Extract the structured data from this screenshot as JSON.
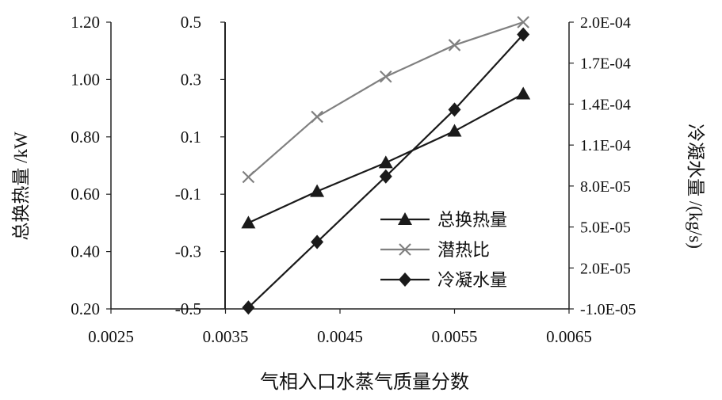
{
  "chart_data": {
    "type": "line",
    "xlabel": "气相入口水蒸气质量分数",
    "x_ticks": [
      "0.0025",
      "0.0035",
      "0.0045",
      "0.0055",
      "0.0065"
    ],
    "xlim": [
      0.0025,
      0.0065
    ],
    "left_axis": {
      "label": "总换热量 /kW",
      "ticks": [
        "0.20",
        "0.40",
        "0.60",
        "0.80",
        "1.00",
        "1.20"
      ],
      "range": [
        0.2,
        1.2
      ]
    },
    "middle_axis": {
      "label": "",
      "ticks": [
        "-0.5",
        "-0.3",
        "-0.1",
        "0.1",
        "0.3",
        "0.5"
      ],
      "range": [
        -0.5,
        0.5
      ]
    },
    "right_axis": {
      "label": "冷凝水量 /(kg/s)",
      "ticks": [
        "-1.0E-05",
        "2.0E-05",
        "5.0E-05",
        "8.0E-05",
        "1.1E-04",
        "1.4E-04",
        "1.7E-04",
        "2.0E-04"
      ],
      "range": [
        -1e-05,
        0.0002
      ]
    },
    "grid": false,
    "legend_position": "bottom-right",
    "series": [
      {
        "name": "总换热量",
        "axis": "left",
        "marker": "triangle",
        "color": "#1a1a1a",
        "x": [
          0.0037,
          0.0043,
          0.0049,
          0.0055,
          0.0061
        ],
        "values": [
          0.5,
          0.61,
          0.71,
          0.82,
          0.95
        ]
      },
      {
        "name": "潜热比",
        "axis": "middle",
        "marker": "x",
        "color": "#808080",
        "x": [
          0.0037,
          0.0043,
          0.0049,
          0.0055,
          0.0061
        ],
        "values": [
          -0.04,
          0.17,
          0.31,
          0.42,
          0.5
        ]
      },
      {
        "name": "冷凝水量",
        "axis": "right",
        "marker": "diamond",
        "color": "#1a1a1a",
        "x": [
          0.0037,
          0.0043,
          0.0049,
          0.0055,
          0.0061
        ],
        "values": [
          -9e-06,
          3.9e-05,
          8.7e-05,
          0.000136,
          0.000191
        ]
      }
    ]
  }
}
